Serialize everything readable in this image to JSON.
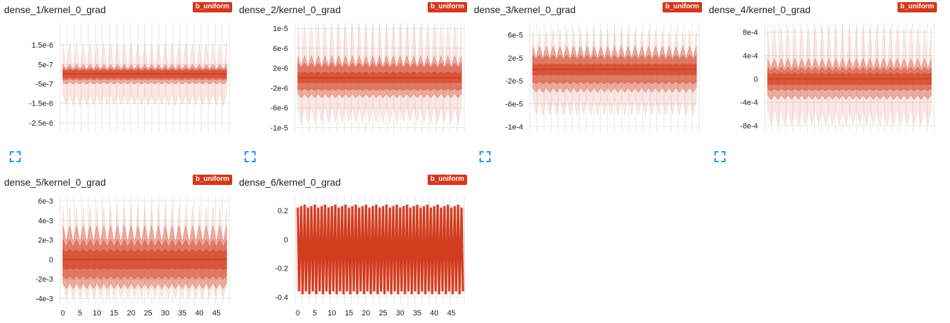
{
  "badge_label": "b_uniform",
  "colors": {
    "series": "#d33d1f",
    "grid": "#e6e6e6",
    "badge": "#d6371c",
    "expand": "#2196f3"
  },
  "charts": [
    {
      "title": "dense_1/kernel_0_grad",
      "yticks": [
        "1.5e-6",
        "5e-7",
        "-5e-7",
        "-1.5e-6",
        "-2.5e-6"
      ],
      "yvals": [
        1.5e-06,
        5e-07,
        -5e-07,
        -1.5e-06,
        -2.5e-06
      ],
      "xticks": [],
      "range": [
        -3e-06,
        2.6e-06
      ]
    },
    {
      "title": "dense_2/kernel_0_grad",
      "yticks": [
        "1e-5",
        "6e-6",
        "2e-6",
        "-2e-6",
        "-6e-6",
        "-1e-5"
      ],
      "yvals": [
        1e-05,
        6e-06,
        2e-06,
        -2e-06,
        -6e-06,
        -1e-05
      ],
      "xticks": [],
      "range": [
        -1.1e-05,
        1.1e-05
      ]
    },
    {
      "title": "dense_3/kernel_0_grad",
      "yticks": [
        "6e-5",
        "2e-5",
        "-2e-5",
        "-6e-5",
        "-1e-4"
      ],
      "yvals": [
        6e-05,
        2e-05,
        -2e-05,
        -6e-05,
        -0.0001
      ],
      "xticks": [],
      "range": [
        -0.00011,
        8e-05
      ]
    },
    {
      "title": "dense_4/kernel_0_grad",
      "yticks": [
        "8e-4",
        "4e-4",
        "0",
        "-4e-4",
        "-8e-4"
      ],
      "yvals": [
        0.0008,
        0.0004,
        0,
        -0.0004,
        -0.0008
      ],
      "xticks": [],
      "range": [
        -0.00092,
        0.00095
      ]
    },
    {
      "title": "dense_5/kernel_0_grad",
      "yticks": [
        "6e-3",
        "4e-3",
        "2e-3",
        "0",
        "-2e-3",
        "-4e-3"
      ],
      "yvals": [
        0.006,
        0.004,
        0.002,
        0,
        -0.002,
        -0.004
      ],
      "xticks": [
        "0",
        "5",
        "10",
        "15",
        "20",
        "25",
        "30",
        "35",
        "40",
        "45"
      ],
      "range": [
        -0.0046,
        0.0065
      ]
    },
    {
      "title": "dense_6/kernel_0_grad",
      "yticks": [
        "0.2",
        "0",
        "-0.2",
        "-0.4"
      ],
      "yvals": [
        0.2,
        0,
        -0.2,
        -0.4
      ],
      "xticks": [
        "0",
        "5",
        "10",
        "15",
        "20",
        "25",
        "30",
        "35",
        "40",
        "45"
      ],
      "range": [
        -0.45,
        0.3
      ]
    }
  ],
  "chart_data": [
    {
      "type": "area",
      "title": "dense_1/kernel_0_grad",
      "x_range": [
        0,
        48
      ],
      "y_range": [
        -3e-06,
        2.6e-06
      ],
      "series": [
        {
          "bands": {
            "p0": [
              -1.6e-06,
              1.6e-06
            ],
            "p7": [
              -5e-07,
              5e-07
            ],
            "p16": [
              -3e-07,
              3e-07
            ],
            "p31": [
              -2e-07,
              2e-07
            ],
            "median": 0
          }
        }
      ]
    },
    {
      "type": "area",
      "title": "dense_2/kernel_0_grad",
      "x_range": [
        0,
        48
      ],
      "y_range": [
        -1.1e-05,
        1.1e-05
      ],
      "series": [
        {
          "bands": {
            "p0": [
              -9e-06,
              1.1e-05
            ],
            "p7": [
              -4e-06,
              4.5e-06
            ],
            "p16": [
              -2.5e-06,
              3e-06
            ],
            "p31": [
              -1e-06,
              1.2e-06
            ],
            "median": 0
          }
        }
      ]
    },
    {
      "type": "area",
      "title": "dense_3/kernel_0_grad",
      "x_range": [
        0,
        48
      ],
      "y_range": [
        -0.00011,
        8e-05
      ],
      "series": [
        {
          "bands": {
            "p0": [
              -8e-05,
              7e-05
            ],
            "p7": [
              -4e-05,
              4e-05
            ],
            "p16": [
              -2.5e-05,
              2.5e-05
            ],
            "p31": [
              -1e-05,
              1e-05
            ],
            "median": 0
          }
        }
      ]
    },
    {
      "type": "area",
      "title": "dense_4/kernel_0_grad",
      "x_range": [
        0,
        48
      ],
      "y_range": [
        -0.00092,
        0.00095
      ],
      "series": [
        {
          "bands": {
            "p0": [
              -0.0008,
              0.0009
            ],
            "p7": [
              -0.00035,
              0.00035
            ],
            "p16": [
              -0.0002,
              0.0002
            ],
            "p31": [
              -0.0001,
              0.0001
            ],
            "median": 0
          }
        }
      ]
    },
    {
      "type": "area",
      "title": "dense_5/kernel_0_grad",
      "x_range": [
        0,
        48
      ],
      "y_range": [
        -0.0046,
        0.0065
      ],
      "series": [
        {
          "bands": {
            "p0": [
              -0.004,
              0.0055
            ],
            "p7": [
              -0.003,
              0.0035
            ],
            "p16": [
              -0.002,
              0.002
            ],
            "p31": [
              -0.001,
              0.001
            ],
            "median": 0
          }
        }
      ]
    },
    {
      "type": "area",
      "title": "dense_6/kernel_0_grad",
      "x_range": [
        0,
        48
      ],
      "y_range": [
        -0.45,
        0.3
      ],
      "series": [
        {
          "sawtooth_amplitude": [
            -0.36,
            0.22
          ],
          "median": -0.07
        }
      ]
    }
  ]
}
